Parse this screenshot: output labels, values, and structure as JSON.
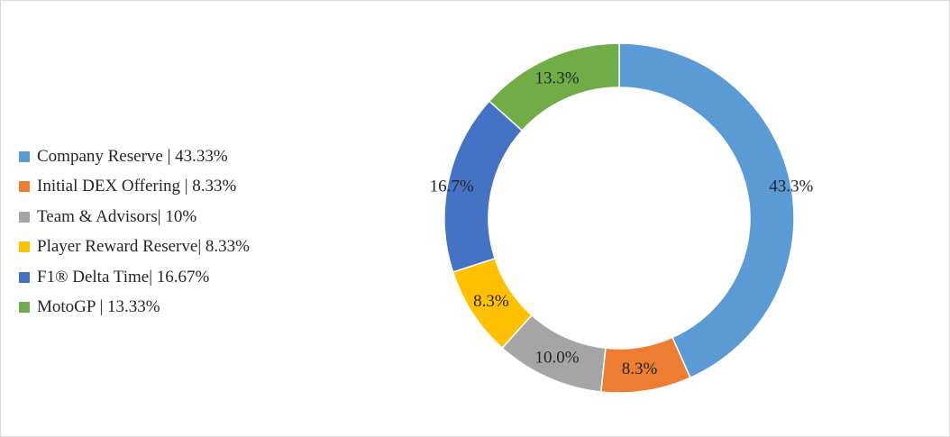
{
  "chart_data": {
    "type": "pie",
    "hole": true,
    "title": "",
    "legend_position": "left",
    "categories": [
      "Company Reserve | 43.33%",
      "Initial DEX Offering | 8.33%",
      "Team & Advisors| 10%",
      "Player Reward Reserve| 8.33%",
      "F1® Delta Time| 16.67%",
      "MotoGP | 13.33%"
    ],
    "values": [
      43.33,
      8.33,
      10,
      8.33,
      16.67,
      13.33
    ],
    "data_labels": [
      "43.3%",
      "8.3%",
      "10.0%",
      "8.3%",
      "16.7%",
      "13.3%"
    ],
    "colors": [
      "#5B9BD5",
      "#ED7D31",
      "#A5A5A5",
      "#FFC000",
      "#4472C4",
      "#70AD47"
    ]
  }
}
